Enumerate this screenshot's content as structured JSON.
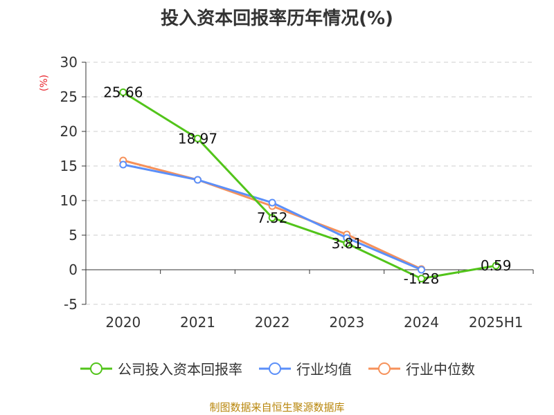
{
  "title": "投入资本回报率历年情况(%)",
  "unit_label": "(%)",
  "source": "制图数据来自恒生聚源数据库",
  "chart_data": {
    "type": "line",
    "categories": [
      "2020",
      "2021",
      "2022",
      "2023",
      "2024",
      "2025H1"
    ],
    "ylim": [
      -5,
      30
    ],
    "yticks": [
      -5,
      0,
      5,
      10,
      15,
      20,
      25,
      30
    ],
    "grid": true,
    "legend_position": "bottom",
    "series": [
      {
        "name": "公司投入资本回报率",
        "color": "#52c41a",
        "values": [
          25.66,
          18.97,
          7.52,
          3.81,
          -1.28,
          0.59
        ],
        "labels": [
          "25.66",
          "18.97",
          "7.52",
          "3.81",
          "-1.28",
          "0.59"
        ]
      },
      {
        "name": "行业均值",
        "color": "#5b8ff9",
        "values": [
          15.2,
          13.0,
          9.7,
          4.6,
          0.0,
          null
        ]
      },
      {
        "name": "行业中位数",
        "color": "#f6915a",
        "values": [
          15.8,
          13.0,
          9.2,
          5.1,
          0.1,
          null
        ]
      }
    ]
  }
}
